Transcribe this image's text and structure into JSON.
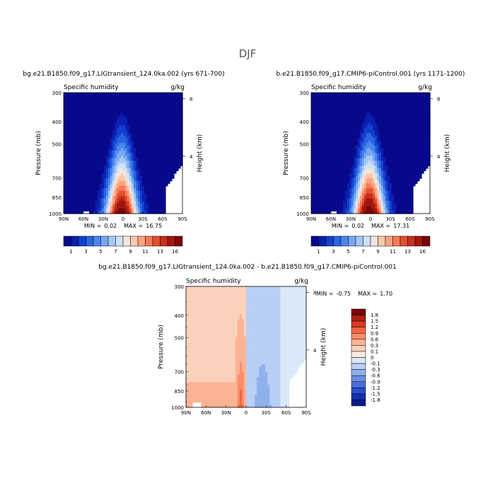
{
  "figure_title": "DJF",
  "chart_data": [
    {
      "type": "heatmap",
      "name": "panel-a",
      "title": "bg.e21.B1850.f09_g17.LIGtransient_124.0ka.002 (yrs 671-700)",
      "variable": "Specific humidity",
      "units": "g/kg",
      "ylabel": "Pressure (mb)",
      "ylabel_right": "Height (km)",
      "x_ticks": [
        "90N",
        "60N",
        "30N",
        "0",
        "30S",
        "60S",
        "90S"
      ],
      "y_ticks": [
        "300",
        "400",
        "500",
        "700",
        "850",
        "1000"
      ],
      "height_ticks": [
        "8",
        "4"
      ],
      "ylim": [
        1000,
        300
      ],
      "xlim": [
        90,
        -90
      ],
      "min_label": "MIN =",
      "min_value": "0.02",
      "max_label": "MAX =",
      "max_value": "16.75",
      "peak": 16.75,
      "colorbar_labels": [
        "1",
        "3",
        "5",
        "7",
        "9",
        "11",
        "13",
        "16"
      ]
    },
    {
      "type": "heatmap",
      "name": "panel-b",
      "title": "b.e21.B1850.f09_g17.CMIP6-piControl.001 (yrs 1171-1200)",
      "variable": "Specific humidity",
      "units": "g/kg",
      "ylabel": "Pressure (mb)",
      "ylabel_right": "Height (km)",
      "x_ticks": [
        "90N",
        "60N",
        "30N",
        "0",
        "30S",
        "60S",
        "90S"
      ],
      "y_ticks": [
        "300",
        "400",
        "500",
        "700",
        "850",
        "1000"
      ],
      "height_ticks": [
        "8",
        "4"
      ],
      "ylim": [
        1000,
        300
      ],
      "xlim": [
        90,
        -90
      ],
      "min_label": "MIN =",
      "min_value": "0.02",
      "max_label": "MAX =",
      "max_value": "17.31",
      "peak": 17.31,
      "colorbar_labels": [
        "1",
        "3",
        "5",
        "7",
        "9",
        "11",
        "13",
        "16"
      ]
    },
    {
      "type": "heatmap",
      "name": "panel-diff",
      "title": "bg.e21.B1850.f09_g17.LIGtransient_124.0ka.002 - b.e21.B1850.f09_g17.CMIP6-piControl.001",
      "variable": "Specific humidity",
      "units": "g/kg",
      "ylabel": "Pressure (mb)",
      "ylabel_right": "Height (km)",
      "x_ticks": [
        "90N",
        "60N",
        "30N",
        "0",
        "30S",
        "60S",
        "90S"
      ],
      "y_ticks": [
        "300",
        "400",
        "500",
        "700",
        "850",
        "1000"
      ],
      "height_ticks": [
        "8",
        "4"
      ],
      "ylim": [
        1000,
        300
      ],
      "xlim": [
        90,
        -90
      ],
      "min_label": "MIN =",
      "min_value": "-0.75",
      "max_label": "MAX =",
      "max_value": "1.70",
      "colorbar_labels": [
        "1.8",
        "1.5",
        "1.2",
        "0.9",
        "0.6",
        "0.3",
        "0.1",
        "0",
        "-0.1",
        "-0.3",
        "-0.6",
        "-0.9",
        "-1.2",
        "-1.5",
        "-1.8"
      ]
    }
  ],
  "colors": {
    "seq": [
      "#08088c",
      "#0b1fb0",
      "#1240cc",
      "#2a64e0",
      "#4b86ec",
      "#78a8f2",
      "#a6c8f6",
      "#cfe2fa",
      "#f5e6da",
      "#fcc9ae",
      "#fca282",
      "#f67a55",
      "#e44f32",
      "#c8301c",
      "#a3160e",
      "#7a0606"
    ],
    "div": [
      "#7a0606",
      "#b01e12",
      "#dd3a22",
      "#f4643f",
      "#fb8d6a",
      "#fcb394",
      "#fdd2bd",
      "#fdebe0",
      "#dae8fa",
      "#b9cff5",
      "#90b1ee",
      "#6b8fe4",
      "#4a6ed8",
      "#2b4dc9",
      "#1430b0",
      "#081a8c"
    ]
  }
}
